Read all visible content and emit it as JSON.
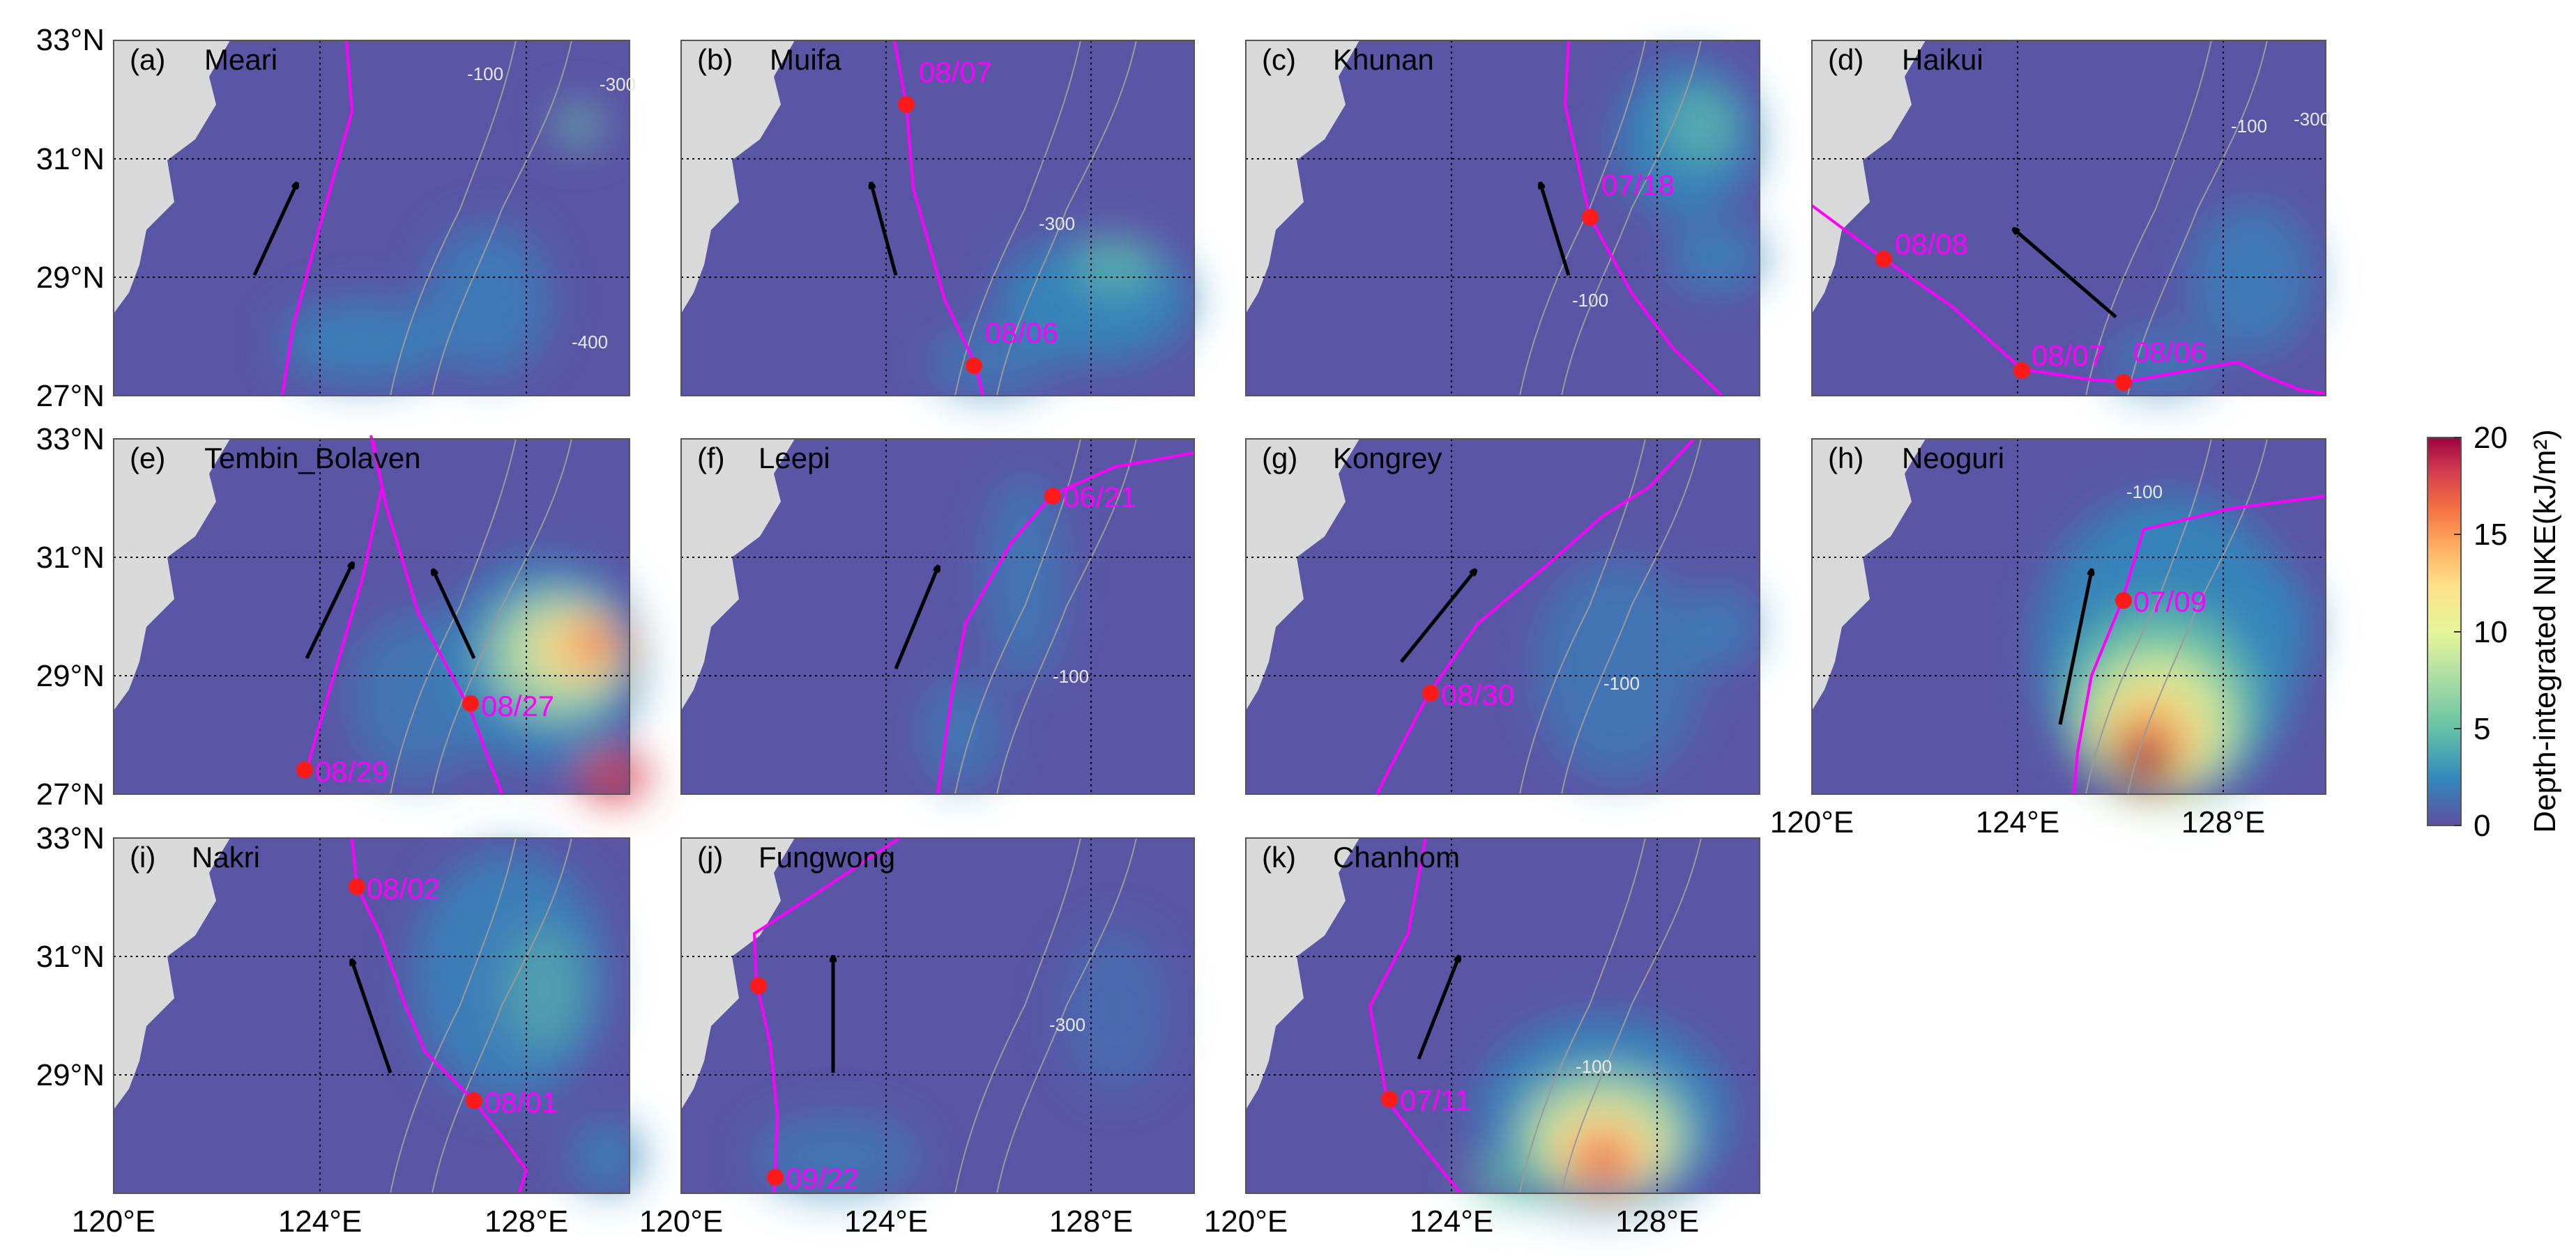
{
  "colors": {
    "background": "#5b55a6",
    "land": "#d9d9d9",
    "track": "#ff00ff",
    "point": "#ff1a1a",
    "isobath": "#9a9a9a",
    "colorbar": [
      "#5e4fa2",
      "#3288bd",
      "#66c2a5",
      "#abdda4",
      "#e6f598",
      "#fee08b",
      "#fdae61",
      "#f46d43",
      "#d53e4f",
      "#9e0142"
    ]
  },
  "axes": {
    "lat_ticks": [
      "27°N",
      "29°N",
      "31°N",
      "33°N"
    ],
    "lon_ticks": [
      "120°E",
      "124°E",
      "128°E"
    ],
    "lat_range": [
      27,
      33
    ],
    "lon_range": [
      120,
      130
    ],
    "grid": "dotted",
    "isobath_labels": [
      "-100",
      "-300",
      "-400"
    ]
  },
  "colorbar": {
    "label": "Depth-integrated NIKE(kJ/m²)",
    "ticks": [
      "0",
      "5",
      "10",
      "15",
      "20"
    ],
    "range": [
      0,
      20
    ]
  },
  "panels": [
    {
      "tag": "(a)",
      "name": "Meari",
      "dates": [],
      "lon_labels": false
    },
    {
      "tag": "(b)",
      "name": "Muifa",
      "dates": [
        "08/07",
        "08/06"
      ],
      "lon_labels": false
    },
    {
      "tag": "(c)",
      "name": "Khunan",
      "dates": [
        "07/18"
      ],
      "lon_labels": false
    },
    {
      "tag": "(d)",
      "name": "Haikui",
      "dates": [
        "08/08",
        "08/07",
        "08/06"
      ],
      "lon_labels": false
    },
    {
      "tag": "(e)",
      "name": "Tembin_Bolaven",
      "dates": [
        "08/27",
        "08/29"
      ],
      "lon_labels": false
    },
    {
      "tag": "(f)",
      "name": "Leepi",
      "dates": [
        "06/21"
      ],
      "lon_labels": false
    },
    {
      "tag": "(g)",
      "name": "Kongrey",
      "dates": [
        "08/30"
      ],
      "lon_labels": false
    },
    {
      "tag": "(h)",
      "name": "Neoguri",
      "dates": [
        "07/09"
      ],
      "lon_labels": true
    },
    {
      "tag": "(i)",
      "name": "Nakri",
      "dates": [
        "08/02",
        "08/01"
      ],
      "lon_labels": true
    },
    {
      "tag": "(j)",
      "name": "Fungwong",
      "dates": [
        "09/22"
      ],
      "lon_labels": true
    },
    {
      "tag": "(k)",
      "name": "Chanhom",
      "dates": [
        "07/11"
      ],
      "lon_labels": true
    }
  ]
}
